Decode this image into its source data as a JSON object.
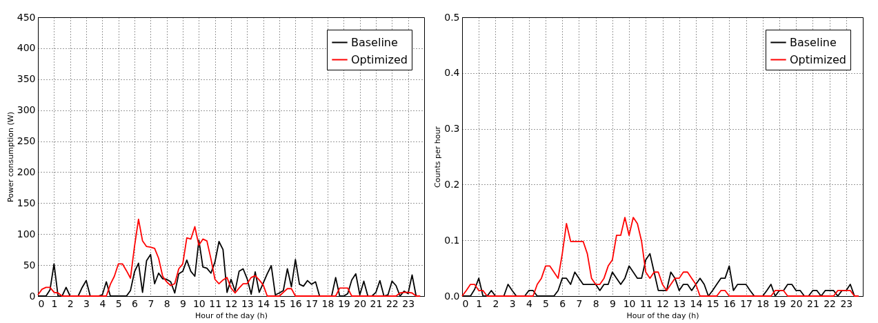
{
  "chart_data": [
    {
      "type": "line",
      "xlabel": "Hour of the day (h)",
      "ylabel": "Power consumption (W)",
      "xlim": [
        0,
        24
      ],
      "xticks": [
        0,
        1,
        2,
        3,
        4,
        5,
        6,
        7,
        8,
        9,
        10,
        11,
        12,
        13,
        14,
        15,
        16,
        17,
        18,
        19,
        20,
        21,
        22,
        23
      ],
      "ylim": [
        0,
        450
      ],
      "yticks": [
        0,
        50,
        100,
        150,
        200,
        250,
        300,
        350,
        400,
        450
      ],
      "grid": true,
      "legend": "top right",
      "line_style": "solid",
      "x": [
        0,
        0.25,
        0.5,
        0.75,
        1,
        1.25,
        1.5,
        1.75,
        2,
        2.25,
        2.5,
        2.75,
        3,
        3.25,
        3.5,
        3.75,
        4,
        4.25,
        4.5,
        4.75,
        5,
        5.25,
        5.5,
        5.75,
        6,
        6.25,
        6.5,
        6.75,
        7,
        7.25,
        7.5,
        7.75,
        8,
        8.25,
        8.5,
        8.75,
        9,
        9.25,
        9.5,
        9.75,
        10,
        10.25,
        10.5,
        10.75,
        11,
        11.25,
        11.5,
        11.75,
        12,
        12.25,
        12.5,
        12.75,
        13,
        13.25,
        13.5,
        13.75,
        14,
        14.25,
        14.5,
        14.75,
        15,
        15.25,
        15.5,
        15.75,
        16,
        16.25,
        16.5,
        16.75,
        17,
        17.25,
        17.5,
        17.75,
        18,
        18.25,
        18.5,
        18.75,
        19,
        19.25,
        19.5,
        19.75,
        20,
        20.25,
        20.5,
        20.75,
        21,
        21.25,
        21.5,
        21.75,
        22,
        22.25,
        22.5,
        22.75,
        23,
        23.25,
        23.5,
        23.75
      ],
      "series": [
        {
          "name": "Baseline",
          "color": "#000000",
          "values": [
            0,
            0,
            0,
            10,
            52,
            0,
            0,
            14,
            0,
            0,
            0,
            14,
            25,
            0,
            0,
            0,
            2,
            23,
            0,
            0,
            0,
            0,
            0,
            9,
            39,
            53,
            6,
            57,
            67,
            20,
            37,
            28,
            27,
            23,
            5,
            36,
            40,
            58,
            40,
            32,
            90,
            47,
            45,
            37,
            55,
            88,
            75,
            6,
            27,
            8,
            40,
            44,
            28,
            3,
            39,
            6,
            21,
            36,
            49,
            2,
            5,
            9,
            44,
            15,
            59,
            19,
            16,
            25,
            19,
            23,
            0,
            0,
            0,
            0,
            30,
            0,
            0,
            4,
            26,
            36,
            2,
            24,
            0,
            0,
            6,
            25,
            0,
            2,
            24,
            17,
            0,
            8,
            4,
            34,
            0,
            0
          ]
        },
        {
          "name": "Optimized",
          "color": "#ff0000",
          "values": [
            2,
            11,
            14,
            14,
            6,
            5,
            0,
            0,
            0,
            0,
            0,
            0,
            0,
            0,
            0,
            0,
            0,
            0,
            19,
            32,
            52,
            52,
            41,
            29,
            80,
            124,
            89,
            80,
            79,
            77,
            61,
            32,
            23,
            17,
            20,
            44,
            52,
            94,
            92,
            112,
            82,
            92,
            89,
            60,
            27,
            20,
            26,
            30,
            13,
            5,
            13,
            20,
            20,
            30,
            33,
            26,
            18,
            0,
            0,
            0,
            0,
            6,
            12,
            12,
            0,
            0,
            0,
            0,
            0,
            0,
            0,
            0,
            0,
            0,
            0,
            13,
            13,
            13,
            0,
            0,
            0,
            0,
            0,
            0,
            0,
            0,
            0,
            0,
            0,
            0,
            5,
            6,
            6,
            5,
            0,
            0
          ]
        }
      ]
    },
    {
      "type": "line",
      "xlabel": "Hour of the day (h)",
      "ylabel": "Counts per hour",
      "xlim": [
        0,
        24
      ],
      "xticks": [
        0,
        1,
        2,
        3,
        4,
        5,
        6,
        7,
        8,
        9,
        10,
        11,
        12,
        13,
        14,
        15,
        16,
        17,
        18,
        19,
        20,
        21,
        22,
        23
      ],
      "ylim": [
        0,
        0.5
      ],
      "yticks": [
        {
          "value": 0,
          "label": "0.0"
        },
        0.1,
        0.2,
        0.3,
        0.4,
        0.5
      ],
      "grid": true,
      "legend": "top right",
      "line_style": "solid",
      "x": [
        0,
        0.25,
        0.5,
        0.75,
        1,
        1.25,
        1.5,
        1.75,
        2,
        2.25,
        2.5,
        2.75,
        3,
        3.25,
        3.5,
        3.75,
        4,
        4.25,
        4.5,
        4.75,
        5,
        5.25,
        5.5,
        5.75,
        6,
        6.25,
        6.5,
        6.75,
        7,
        7.25,
        7.5,
        7.75,
        8,
        8.25,
        8.5,
        8.75,
        9,
        9.25,
        9.5,
        9.75,
        10,
        10.25,
        10.5,
        10.75,
        11,
        11.25,
        11.5,
        11.75,
        12,
        12.25,
        12.5,
        12.75,
        13,
        13.25,
        13.5,
        13.75,
        14,
        14.25,
        14.5,
        14.75,
        15,
        15.25,
        15.5,
        15.75,
        16,
        16.25,
        16.5,
        16.75,
        17,
        17.25,
        17.5,
        17.75,
        18,
        18.25,
        18.5,
        18.75,
        19,
        19.25,
        19.5,
        19.75,
        20,
        20.25,
        20.5,
        20.75,
        21,
        21.25,
        21.5,
        21.75,
        22,
        22.25,
        22.5,
        22.75,
        23,
        23.25,
        23.5,
        23.75
      ],
      "series": [
        {
          "name": "Baseline",
          "color": "#000000",
          "values": [
            0,
            0,
            0,
            0.012,
            0.032,
            0,
            0,
            0.01,
            0,
            0,
            0,
            0.021,
            0.01,
            0,
            0,
            0,
            0.01,
            0.01,
            0,
            0,
            0,
            0,
            0,
            0.01,
            0.032,
            0.032,
            0.021,
            0.043,
            0.032,
            0.021,
            0.021,
            0.021,
            0.021,
            0.01,
            0.021,
            0.021,
            0.043,
            0.032,
            0.021,
            0.032,
            0.054,
            0.043,
            0.032,
            0.032,
            0.065,
            0.076,
            0.043,
            0.01,
            0.01,
            0.01,
            0.043,
            0.032,
            0.01,
            0.021,
            0.021,
            0.01,
            0.021,
            0.032,
            0.021,
            0,
            0.01,
            0.021,
            0.032,
            0.032,
            0.054,
            0.01,
            0.021,
            0.021,
            0.021,
            0.01,
            0,
            0,
            0,
            0.01,
            0.021,
            0,
            0.01,
            0.01,
            0.021,
            0.021,
            0.01,
            0.01,
            0,
            0,
            0.01,
            0.01,
            0,
            0.01,
            0.01,
            0.01,
            0,
            0.01,
            0.01,
            0.021,
            0,
            0
          ]
        },
        {
          "name": "Optimized",
          "color": "#ff0000",
          "values": [
            0,
            0.01,
            0.021,
            0.021,
            0.01,
            0.01,
            0,
            0,
            0,
            0,
            0,
            0,
            0,
            0,
            0,
            0,
            0,
            0,
            0.021,
            0.032,
            0.054,
            0.054,
            0.043,
            0.032,
            0.076,
            0.13,
            0.098,
            0.098,
            0.098,
            0.098,
            0.076,
            0.032,
            0.021,
            0.021,
            0.032,
            0.054,
            0.065,
            0.109,
            0.109,
            0.141,
            0.109,
            0.141,
            0.13,
            0.098,
            0.043,
            0.032,
            0.043,
            0.043,
            0.021,
            0.01,
            0.021,
            0.032,
            0.032,
            0.043,
            0.043,
            0.032,
            0.021,
            0,
            0,
            0,
            0,
            0,
            0.01,
            0.01,
            0,
            0,
            0,
            0,
            0,
            0,
            0,
            0,
            0,
            0,
            0,
            0.01,
            0.01,
            0.01,
            0,
            0,
            0,
            0,
            0,
            0,
            0,
            0,
            0,
            0,
            0,
            0,
            0.01,
            0.01,
            0.01,
            0.01,
            0,
            0
          ]
        }
      ]
    }
  ]
}
